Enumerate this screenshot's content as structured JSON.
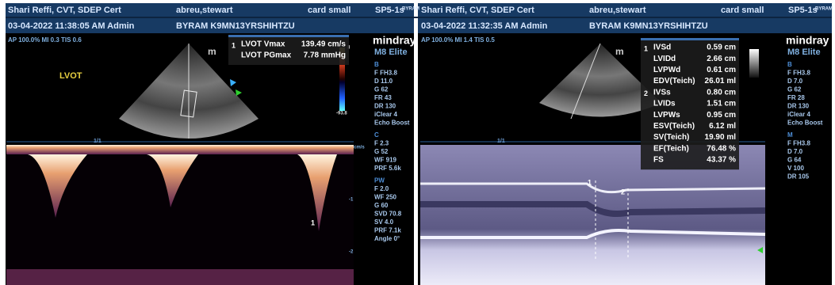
{
  "panels": [
    {
      "header": {
        "operator": "Shari Reffi, CVT, SDEP Cert",
        "patient": "abreu,stewart",
        "preset": "card small",
        "probe": "SP5-1s",
        "probe_tag": "BYRAM",
        "datetime": "03-04-2022 11:38:05 AM Admin",
        "patient_id": "BYRAM K9MN13YRSHIHTZU"
      },
      "acoustic": "AP 100.0% MI 0.3 TIS 0.6",
      "view_label": "LVOT",
      "orientation_mark": "m",
      "timeline": "1/1",
      "colorbar_labels": [
        "8",
        "-93.8"
      ],
      "scale_labels": [
        "cm/s",
        "-1",
        "-2"
      ],
      "markers": [
        "1"
      ],
      "measurements": [
        {
          "index": "1",
          "label": "LVOT Vmax",
          "value": "139.49 cm/s"
        },
        {
          "label": "LVOT PGmax",
          "value": "7.78 mmHg"
        }
      ],
      "brand": "mindray",
      "model": "M8 Elite",
      "params": [
        {
          "section": "B",
          "items": [
            "F FH3.8",
            "D 11.0",
            "G 62",
            "FR 43",
            "DR 130",
            "iClear 4",
            "Echo Boost"
          ]
        },
        {
          "section": "C",
          "items": [
            "F 2.3",
            "G 52",
            "WF 919",
            "PRF 5.6k"
          ]
        },
        {
          "section": "PW",
          "items": [
            "F 2.0",
            "WF 250",
            "G 60",
            "SVD 70.8",
            "SV 4.0",
            "PRF 7.1k",
            "Angle 0°"
          ]
        }
      ]
    },
    {
      "header": {
        "operator": "Shari Reffi, CVT, SDEP Cert",
        "patient": "abreu,stewart",
        "preset": "card small",
        "probe": "SP5-1s",
        "probe_tag": "BYRAM",
        "datetime": "03-04-2022 11:32:35 AM Admin",
        "patient_id": "BYRAM K9MN13YRSHIHTZU"
      },
      "acoustic": "AP 100.0% MI 1.4 TIS 0.5",
      "orientation_mark": "m",
      "timeline": "1/1",
      "markers": [
        "1",
        "2"
      ],
      "measurements": [
        {
          "index": "1",
          "label": "IVSd",
          "value": "0.59 cm"
        },
        {
          "label": "LVIDd",
          "value": "2.66 cm"
        },
        {
          "label": "LVPWd",
          "value": "0.61 cm"
        },
        {
          "label": "EDV(Teich)",
          "value": "26.01 ml"
        },
        {
          "index": "2",
          "label": "IVSs",
          "value": "0.80 cm"
        },
        {
          "label": "LVIDs",
          "value": "1.51 cm"
        },
        {
          "label": "LVPWs",
          "value": "0.95 cm"
        },
        {
          "label": "ESV(Teich)",
          "value": "6.12 ml"
        },
        {
          "label": "SV(Teich)",
          "value": "19.90 ml"
        },
        {
          "label": "EF(Teich)",
          "value": "76.48 %"
        },
        {
          "label": "FS",
          "value": "43.37 %"
        }
      ],
      "brand": "mindray",
      "model": "M8 Elite",
      "params": [
        {
          "section": "B",
          "items": [
            "F FH3.8",
            "D 7.0",
            "G 62",
            "FR 28",
            "DR 130",
            "iClear 4",
            "Echo Boost"
          ]
        },
        {
          "section": "M",
          "items": [
            "F FH3.8",
            "D 7.0",
            "G 64",
            "V 100",
            "DR 105"
          ]
        }
      ]
    }
  ]
}
